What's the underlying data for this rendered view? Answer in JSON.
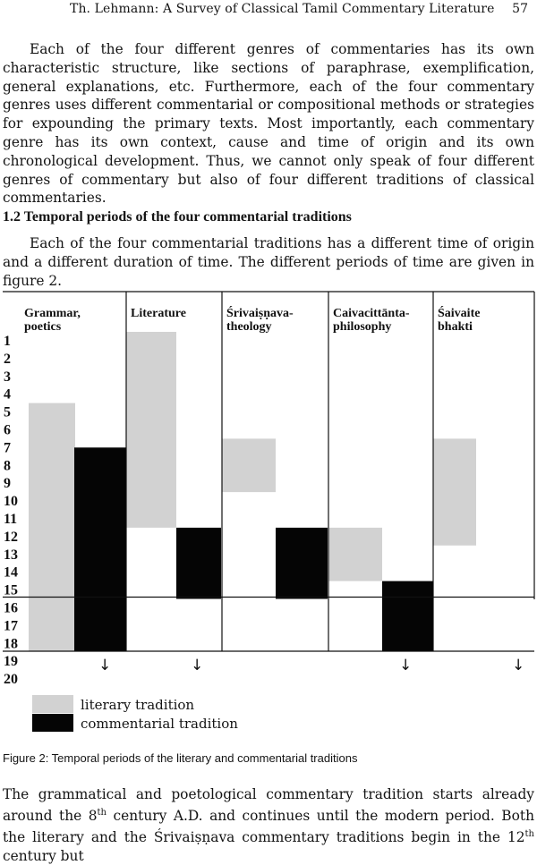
{
  "header": {
    "title": "Th. Lehmann: A Survey of Classical Tamil Commentary Literature",
    "page_number": "57"
  },
  "paragraph1": "Each of the four different genres of commentaries has its own characteristic structure, like sections of paraphrase, exemplification, general explanations, etc. Furthermore, each of the four commentary genres uses different commentarial or compositional methods or strategies for expounding the primary texts. Most importantly, each commentary genre has its own context, cause and time of origin and its own chronological development. Thus, we cannot only speak of four different genres of commentary but also of four different traditions of classical commentaries.",
  "section_heading": "1.2 Temporal periods of the four commentarial traditions",
  "paragraph2": "Each of the four commentarial traditions has a different time of origin and a different duration of time. The different periods of time are given in figure 2.",
  "figure": {
    "columns": [
      {
        "line1": "Grammar,",
        "line2": "poetics"
      },
      {
        "line1": "Literature",
        "line2": ""
      },
      {
        "line1": "Śrivaiṣṇava-",
        "line2": "theology"
      },
      {
        "line1": "Caivacittānta-",
        "line2": "philosophy"
      },
      {
        "line1": "Śaivaite",
        "line2": "bhakti"
      }
    ],
    "centuries": [
      "1",
      "2",
      "3",
      "4",
      "5",
      "6",
      "7",
      "8",
      "9",
      "10",
      "11",
      "12",
      "13",
      "14",
      "15",
      "16",
      "17",
      "18",
      "19",
      "20"
    ],
    "periods": [
      {
        "column": 0,
        "tradition": "literary",
        "from": 5,
        "to": 19
      },
      {
        "column": 0,
        "tradition": "commentarial",
        "from": 8,
        "to": 19
      },
      {
        "column": 1,
        "tradition": "literary",
        "from": 1,
        "to": 12
      },
      {
        "column": 1,
        "tradition": "commentarial",
        "from": 12,
        "to": 16
      },
      {
        "column": 2,
        "tradition": "literary",
        "from": 7,
        "to": 10
      },
      {
        "column": 2,
        "tradition": "commentarial",
        "from": 12,
        "to": 16
      },
      {
        "column": 3,
        "tradition": "literary",
        "from": 12,
        "to": 15
      },
      {
        "column": 3,
        "tradition": "commentarial",
        "from": 15,
        "to": 19
      },
      {
        "column": 4,
        "tradition": "literary",
        "from": 7,
        "to": 13
      }
    ],
    "arrows": [
      "↓",
      "↓",
      "↓",
      "↓"
    ],
    "colors": {
      "literary": "#d2d2d2",
      "commentarial": "#050505"
    },
    "legend": {
      "literary": "literary tradition",
      "commentarial": "commentarial tradition"
    },
    "caption": "Figure 2: Temporal periods of the literary and commentarial traditions"
  },
  "paragraph3": "The grammatical and poetological commentary tradition starts already around the 8th century A.D. and continues until the modern period. Both the literary and the Śrivaiṣṇava commentary traditions begin in the 12th century but"
}
